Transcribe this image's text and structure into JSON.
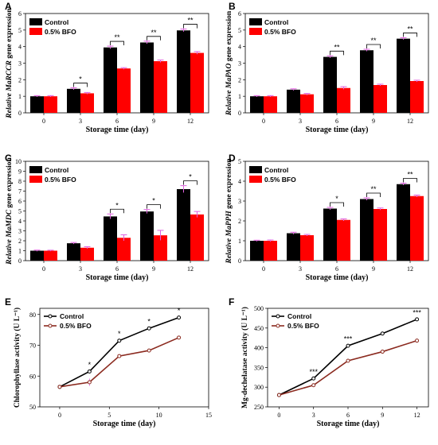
{
  "colors": {
    "control": "#000000",
    "bfo": "#ff0000",
    "bfo_line": "#8b2a1f",
    "errbar": "#e060e0"
  },
  "chart_data": [
    {
      "panel": "A",
      "type": "bar",
      "xlabel": "Storage time (day)",
      "ylabel_italic": "Relative MaRCCR",
      "ylabel_rest": " gene expression",
      "categories": [
        "0",
        "3",
        "6",
        "9",
        "12"
      ],
      "ylim": [
        0,
        6
      ],
      "yticks": [
        0,
        1,
        2,
        3,
        4,
        5,
        6
      ],
      "legend": "top-left",
      "series": [
        {
          "name": "Control",
          "color": "#000000",
          "values": [
            1.0,
            1.45,
            3.95,
            4.25,
            4.98
          ],
          "errors": [
            0.04,
            0.06,
            0.08,
            0.08,
            0.08
          ]
        },
        {
          "name": "0.5% BFO",
          "color": "#ff0000",
          "values": [
            1.0,
            1.18,
            2.68,
            3.12,
            3.62
          ],
          "errors": [
            0.04,
            0.05,
            0.05,
            0.07,
            0.08
          ]
        }
      ],
      "significance": [
        "",
        "*",
        "**",
        "**",
        "**"
      ]
    },
    {
      "panel": "B",
      "type": "bar",
      "xlabel": "Storage time (day)",
      "ylabel_italic": "Relative MaPAO",
      "ylabel_rest": " gene expression",
      "categories": [
        "0",
        "3",
        "6",
        "9",
        "12"
      ],
      "ylim": [
        0,
        6
      ],
      "yticks": [
        0,
        1,
        2,
        3,
        4,
        5,
        6
      ],
      "legend": "top-left",
      "series": [
        {
          "name": "Control",
          "color": "#000000",
          "values": [
            1.0,
            1.4,
            3.38,
            3.78,
            4.48
          ],
          "errors": [
            0.04,
            0.05,
            0.06,
            0.06,
            0.06
          ]
        },
        {
          "name": "0.5% BFO",
          "color": "#ff0000",
          "values": [
            1.0,
            1.12,
            1.5,
            1.68,
            1.92
          ],
          "errors": [
            0.04,
            0.05,
            0.08,
            0.05,
            0.05
          ]
        }
      ],
      "significance": [
        "",
        "",
        "**",
        "**",
        "**"
      ]
    },
    {
      "panel": "C",
      "type": "bar",
      "xlabel": "Storage time (day)",
      "ylabel_italic": "Relative MaMDC",
      "ylabel_rest": " gene expression",
      "categories": [
        "0",
        "3",
        "6",
        "9",
        "12"
      ],
      "ylim": [
        0,
        10
      ],
      "yticks": [
        0,
        1,
        2,
        3,
        4,
        5,
        6,
        7,
        8,
        9,
        10
      ],
      "legend": "top-left",
      "series": [
        {
          "name": "Control",
          "color": "#000000",
          "values": [
            1.0,
            1.75,
            4.45,
            4.95,
            7.2
          ],
          "errors": [
            0.06,
            0.08,
            0.25,
            0.2,
            0.35
          ]
        },
        {
          "name": "0.5% BFO",
          "color": "#ff0000",
          "values": [
            1.0,
            1.3,
            2.3,
            2.55,
            4.65
          ],
          "errors": [
            0.05,
            0.1,
            0.3,
            0.5,
            0.3
          ]
        }
      ],
      "significance": [
        "",
        "",
        "*",
        "*",
        "*"
      ]
    },
    {
      "panel": "D",
      "type": "bar",
      "xlabel": "Storage time (day)",
      "ylabel_italic": "Relative MaPPH",
      "ylabel_rest": " gene expression",
      "categories": [
        "0",
        "3",
        "6",
        "9",
        "12"
      ],
      "ylim": [
        0,
        5
      ],
      "yticks": [
        0,
        1,
        2,
        3,
        4,
        5
      ],
      "legend": "top-left",
      "series": [
        {
          "name": "Control",
          "color": "#000000",
          "values": [
            1.0,
            1.38,
            2.62,
            3.1,
            3.85
          ],
          "errors": [
            0.03,
            0.05,
            0.06,
            0.06,
            0.05
          ]
        },
        {
          "name": "0.5% BFO",
          "color": "#ff0000",
          "values": [
            1.0,
            1.28,
            2.05,
            2.6,
            3.25
          ],
          "errors": [
            0.04,
            0.04,
            0.05,
            0.05,
            0.05
          ]
        }
      ],
      "significance": [
        "",
        "",
        "*",
        "**",
        "**"
      ]
    },
    {
      "panel": "E",
      "type": "line",
      "xlabel": "Storage time (day)",
      "ylabel": "Chlorophyllase activity",
      "yunit": "(U L⁻¹)",
      "x": [
        0,
        3,
        6,
        9,
        12
      ],
      "xlim": [
        -2,
        15
      ],
      "xticks": [
        0,
        5,
        10,
        15
      ],
      "ylim": [
        50,
        82
      ],
      "yticks": [
        50,
        60,
        70,
        80
      ],
      "legend": "top-left",
      "series": [
        {
          "name": "Control",
          "color": "#000000",
          "values": [
            56.5,
            61.5,
            71.5,
            75.5,
            79.0
          ],
          "errors": [
            0.3,
            0.4,
            0.4,
            0.4,
            0.4
          ]
        },
        {
          "name": "0.5% BFO",
          "color": "#8b2a1f",
          "values": [
            56.5,
            58.0,
            66.5,
            68.3,
            72.5
          ],
          "errors": [
            0.3,
            1.2,
            0.3,
            0.3,
            0.4
          ]
        }
      ],
      "significance": [
        "",
        "*",
        "*",
        "*",
        "*"
      ]
    },
    {
      "panel": "F",
      "type": "line",
      "xlabel": "Storage time (day)",
      "ylabel": "Mg-dechelatase activity",
      "yunit": "(U L⁻¹)",
      "x": [
        0,
        3,
        6,
        9,
        12
      ],
      "xlim": [
        -1,
        13
      ],
      "xticks": [
        0,
        3,
        6,
        9,
        12
      ],
      "ylim": [
        250,
        500
      ],
      "yticks": [
        250,
        300,
        350,
        400,
        450,
        500
      ],
      "legend": "top-left",
      "series": [
        {
          "name": "Control",
          "color": "#000000",
          "values": [
            280,
            322,
            405,
            436,
            472
          ],
          "errors": [
            2,
            3,
            3,
            3,
            3
          ]
        },
        {
          "name": "0.5% BFO",
          "color": "#8b2a1f",
          "values": [
            280,
            305,
            367,
            390,
            418
          ],
          "errors": [
            2,
            3,
            3,
            3,
            3
          ]
        }
      ],
      "significance": [
        "",
        "***",
        "***",
        "",
        "***"
      ]
    }
  ]
}
